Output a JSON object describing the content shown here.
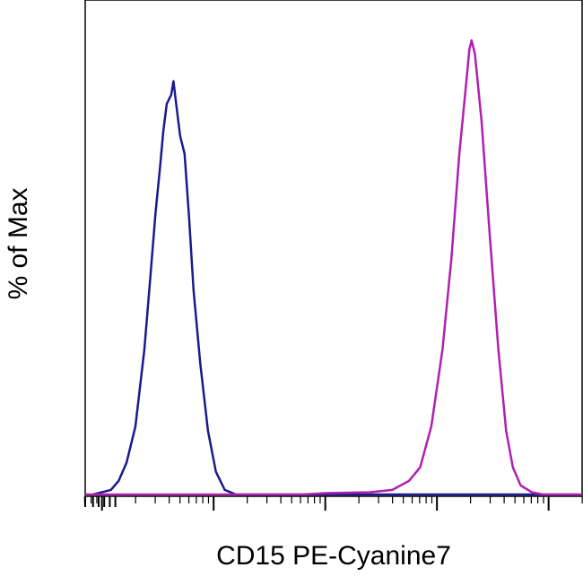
{
  "chart_data": {
    "type": "line",
    "xlabel": "CD15 PE-Cyanine7",
    "ylabel": "% of Max",
    "x_scale": "log",
    "xlim": [
      -0.15,
      4.3
    ],
    "ylim": [
      0,
      100
    ],
    "grid": false,
    "legend": "none",
    "major_ticks": [
      0,
      1,
      2,
      3,
      4
    ],
    "series": [
      {
        "color": "#1a1a8c",
        "points": [
          [
            -0.08,
            0
          ],
          [
            0.08,
            1
          ],
          [
            0.15,
            3
          ],
          [
            0.22,
            7
          ],
          [
            0.3,
            15
          ],
          [
            0.38,
            32
          ],
          [
            0.44,
            50
          ],
          [
            0.48,
            62
          ],
          [
            0.52,
            72
          ],
          [
            0.55,
            80
          ],
          [
            0.58,
            86
          ],
          [
            0.62,
            88
          ],
          [
            0.64,
            91
          ],
          [
            0.66,
            87
          ],
          [
            0.7,
            79
          ],
          [
            0.74,
            75
          ],
          [
            0.78,
            61
          ],
          [
            0.82,
            45
          ],
          [
            0.88,
            29
          ],
          [
            0.95,
            14
          ],
          [
            1.02,
            5
          ],
          [
            1.1,
            1
          ],
          [
            1.2,
            0
          ],
          [
            4.25,
            0
          ]
        ]
      },
      {
        "color": "#b020b0",
        "points": [
          [
            -0.15,
            0
          ],
          [
            1.8,
            0
          ],
          [
            2.0,
            0.3
          ],
          [
            2.4,
            0.5
          ],
          [
            2.6,
            1
          ],
          [
            2.75,
            3
          ],
          [
            2.85,
            6
          ],
          [
            2.95,
            15
          ],
          [
            3.05,
            32
          ],
          [
            3.13,
            52
          ],
          [
            3.2,
            75
          ],
          [
            3.26,
            90
          ],
          [
            3.29,
            98
          ],
          [
            3.31,
            100
          ],
          [
            3.34,
            97
          ],
          [
            3.4,
            82
          ],
          [
            3.47,
            58
          ],
          [
            3.55,
            32
          ],
          [
            3.62,
            14
          ],
          [
            3.68,
            6
          ],
          [
            3.75,
            2
          ],
          [
            3.85,
            0.5
          ],
          [
            3.95,
            0
          ],
          [
            4.3,
            0
          ]
        ]
      }
    ]
  }
}
